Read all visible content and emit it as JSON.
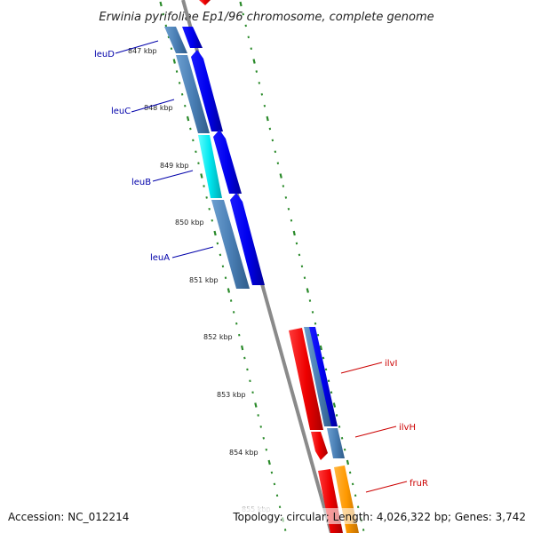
{
  "title": "Erwinia pyrifoliae Ep1/96 chromosome, complete genome",
  "accession": "Accession: NC_012214",
  "topology": "Topology: circular; Length: 4,026,322 bp; Genes: 3,742",
  "colors": {
    "cds_blue": "#0000ee",
    "gene_steel": "#4a7fb5",
    "gene_cyan": "#00e5ee",
    "cds_red": "#ee0000",
    "cds_orange": "#ff9900",
    "tick_green": "#2a8a2a",
    "backbone_gray": "#8a8a8a",
    "label_blue": "#0000aa",
    "label_red": "#cc0000"
  },
  "kbp_labels": [
    "847 kbp",
    "848 kbp",
    "849 kbp",
    "850 kbp",
    "851 kbp",
    "852 kbp",
    "853 kbp",
    "854 kbp",
    "855 kbp"
  ],
  "genes": [
    {
      "name": "leuD",
      "side": "left",
      "color": "label_blue"
    },
    {
      "name": "leuC",
      "side": "left",
      "color": "label_blue"
    },
    {
      "name": "leuB",
      "side": "left",
      "color": "label_blue"
    },
    {
      "name": "leuA",
      "side": "left",
      "color": "label_blue"
    },
    {
      "name": "ilvI",
      "side": "right",
      "color": "label_red"
    },
    {
      "name": "ilvH",
      "side": "right",
      "color": "label_red"
    },
    {
      "name": "fruR",
      "side": "right",
      "color": "label_red"
    }
  ]
}
